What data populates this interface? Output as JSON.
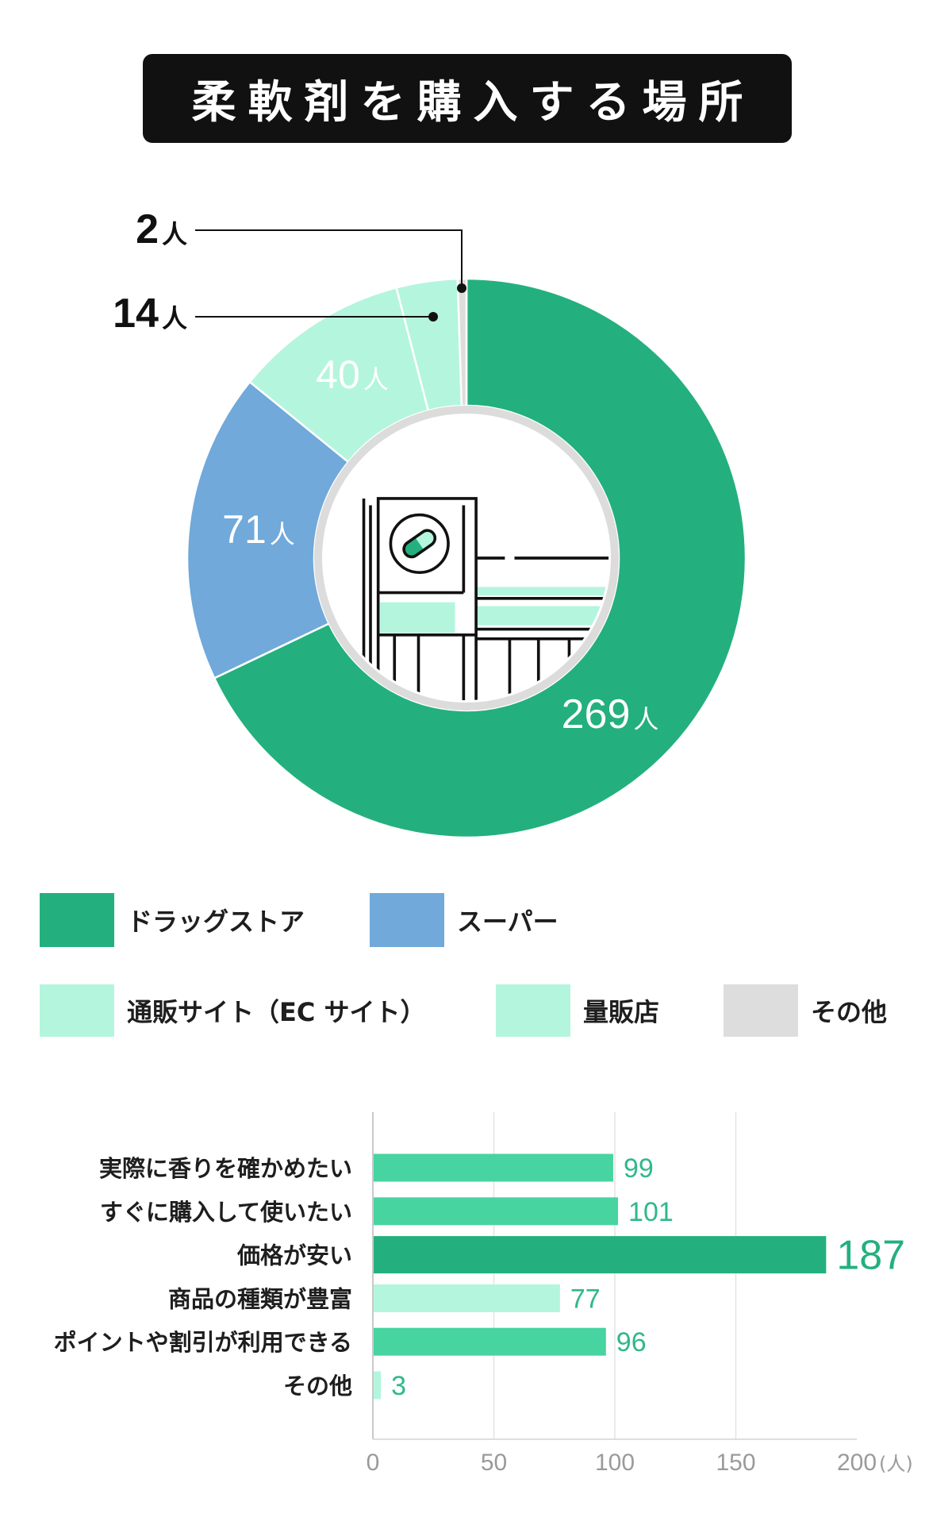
{
  "chart_data": [
    {
      "type": "pie",
      "donut": true,
      "title": "柔軟剤を購入する場所",
      "unit": "人",
      "legend_position": "bottom",
      "slices": [
        {
          "label": "ドラッグストア",
          "value": 269,
          "color": "#23b07e"
        },
        {
          "label": "スーパー",
          "value": 71,
          "color": "#70a9da"
        },
        {
          "label": "通販サイト（EC サイト）",
          "value": 40,
          "color": "#b4f5de"
        },
        {
          "label": "量販店",
          "value": 14,
          "color": "#b4f5de"
        },
        {
          "label": "その他",
          "value": 2,
          "color": "#dddddd"
        }
      ]
    },
    {
      "type": "bar",
      "orientation": "horizontal",
      "categories": [
        "実際に香りを確かめたい",
        "すぐに購入して使いたい",
        "価格が安い",
        "商品の種類が豊富",
        "ポイントや割引が利用できる",
        "その他"
      ],
      "values": [
        99,
        101,
        187,
        77,
        96,
        3
      ],
      "colors": [
        "#47d4a1",
        "#47d4a1",
        "#23b07e",
        "#b4f5de",
        "#47d4a1",
        "#b4f5de"
      ],
      "xlim": [
        0,
        200
      ],
      "xticks": [
        0,
        50,
        100,
        150,
        200
      ],
      "xunit": "(人)",
      "grid": true
    }
  ]
}
